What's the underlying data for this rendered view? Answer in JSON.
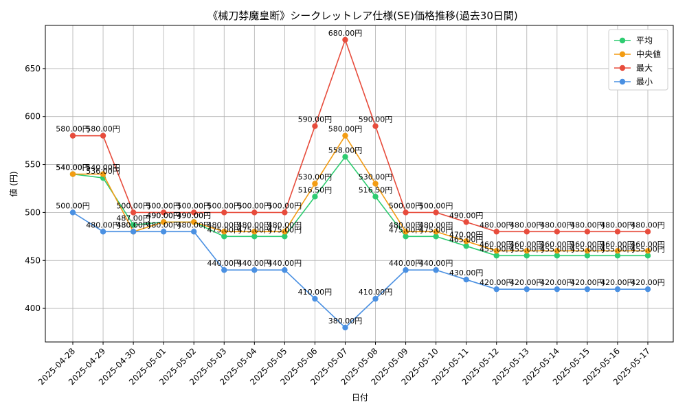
{
  "chart_data": {
    "type": "line",
    "title": "《械刀棼魔皇断》シークレットレア仕様(SE)価格推移(過去30日間)",
    "xlabel": "日付",
    "ylabel": "値 (円)",
    "value_suffix": "円",
    "ylim": [
      365,
      695
    ],
    "yticks": [
      400,
      450,
      500,
      550,
      600,
      650
    ],
    "grid": true,
    "legend_position": "top-right",
    "categories": [
      "2025-04-28",
      "2025-04-29",
      "2025-04-30",
      "2025-05-01",
      "2025-05-02",
      "2025-05-03",
      "2025-05-04",
      "2025-05-05",
      "2025-05-06",
      "2025-05-07",
      "2025-05-08",
      "2025-05-09",
      "2025-05-10",
      "2025-05-11",
      "2025-05-12",
      "2025-05-13",
      "2025-05-14",
      "2025-05-15",
      "2025-05-16",
      "2025-05-17"
    ],
    "series": [
      {
        "name": "平均",
        "color": "#2ecc71",
        "values": [
          540,
          536,
          487,
          490,
          490,
          475,
          475,
          475,
          516.5,
          558,
          516.5,
          475,
          475,
          465,
          455,
          455,
          455,
          455,
          455,
          455
        ]
      },
      {
        "name": "中央値",
        "color": "#f39c12",
        "values": [
          540,
          540,
          480,
          490,
          490,
          480,
          480,
          480,
          530,
          580,
          530,
          480,
          480,
          470,
          460,
          460,
          460,
          460,
          460,
          460
        ]
      },
      {
        "name": "最大",
        "color": "#e74c3c",
        "values": [
          580,
          580,
          500,
          500,
          500,
          500,
          500,
          500,
          590,
          680,
          590,
          500,
          500,
          490,
          480,
          480,
          480,
          480,
          480,
          480
        ]
      },
      {
        "name": "最小",
        "color": "#4a90e2",
        "values": [
          500,
          480,
          480,
          480,
          480,
          440,
          440,
          440,
          410,
          380,
          410,
          440,
          440,
          430,
          420,
          420,
          420,
          420,
          420,
          420
        ]
      }
    ]
  }
}
